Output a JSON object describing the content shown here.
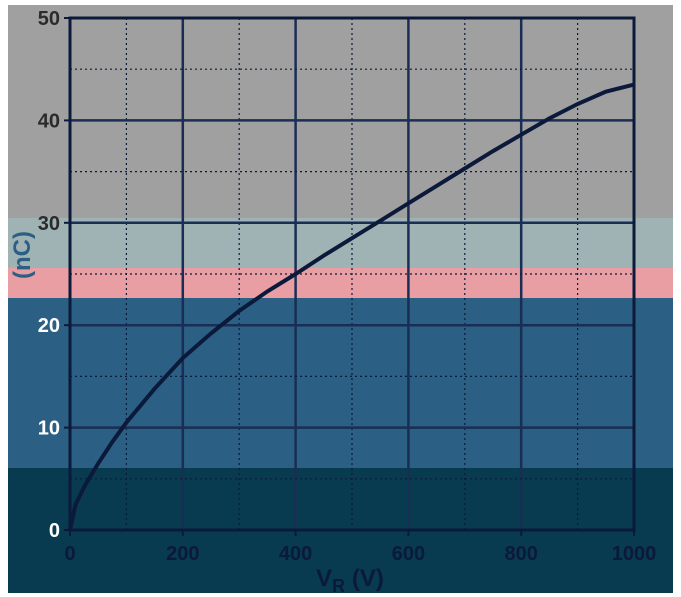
{
  "chart_data": {
    "type": "line",
    "title": "",
    "xlabel": "V",
    "xlabel_sub": "R",
    "xlabel_unit": " (V)",
    "ylabel": "(nC)",
    "xlim": [
      0,
      1000
    ],
    "ylim": [
      0,
      50
    ],
    "x_ticks": [
      0,
      200,
      400,
      600,
      800,
      1000
    ],
    "y_ticks": [
      0,
      10,
      20,
      30,
      40,
      50
    ],
    "x_tick_labels": [
      "0",
      "200",
      "400",
      "600",
      "800",
      "1000"
    ],
    "y_tick_labels": [
      "0",
      "10",
      "20",
      "30",
      "40",
      "50"
    ],
    "grid": true,
    "series": [
      {
        "values": [
          [
            0,
            0
          ],
          [
            10,
            2.5
          ],
          [
            25,
            4.2
          ],
          [
            50,
            6.5
          ],
          [
            75,
            8.6
          ],
          [
            100,
            10.5
          ],
          [
            150,
            13.8
          ],
          [
            200,
            16.8
          ],
          [
            250,
            19.2
          ],
          [
            300,
            21.4
          ],
          [
            350,
            23.3
          ],
          [
            400,
            25.0
          ],
          [
            450,
            26.8
          ],
          [
            500,
            28.5
          ],
          [
            550,
            30.2
          ],
          [
            600,
            31.9
          ],
          [
            650,
            33.6
          ],
          [
            700,
            35.3
          ],
          [
            750,
            37.0
          ],
          [
            800,
            38.6
          ],
          [
            850,
            40.2
          ],
          [
            900,
            41.6
          ],
          [
            950,
            42.8
          ],
          [
            1000,
            43.5
          ]
        ]
      }
    ],
    "colors": {
      "band_top": "#a0a0a0",
      "band_mid_gray": "#9fb2b4",
      "band_pink": "#e99ea4",
      "band_blue": "#2b5f84",
      "band_dark": "#083a50",
      "curve": "#0b1a3a",
      "grid_major": "#1a2e55",
      "grid_minor": "#0a1a3a"
    }
  }
}
